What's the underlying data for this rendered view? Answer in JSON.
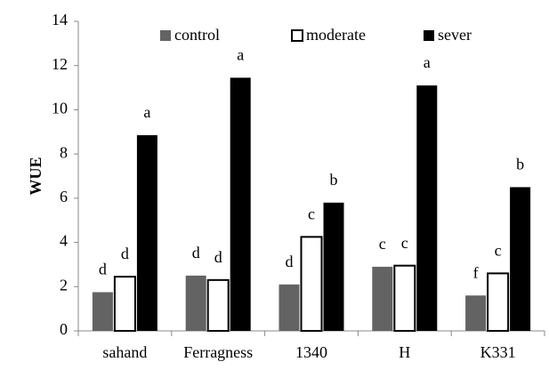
{
  "chart_data": {
    "type": "bar",
    "y_label": "WUE",
    "categories": [
      "sahand",
      "Ferragness",
      "1340",
      "H",
      "K331"
    ],
    "series": [
      {
        "name": "control",
        "color": "#636363",
        "values": [
          1.75,
          2.5,
          2.1,
          2.9,
          1.6
        ],
        "labels": [
          "d",
          "d",
          "d",
          "c",
          "f"
        ]
      },
      {
        "name": "moderate",
        "color": "#ffffff",
        "values": [
          2.45,
          2.3,
          4.25,
          2.95,
          2.6
        ],
        "labels": [
          "d",
          "d",
          "c",
          "c",
          "c"
        ]
      },
      {
        "name": "sever",
        "color": "#000000",
        "values": [
          8.85,
          11.45,
          5.8,
          11.1,
          6.5
        ],
        "labels": [
          "a",
          "a",
          "b",
          "a",
          "b"
        ]
      }
    ],
    "ylim": [
      0,
      14
    ],
    "yticks": [
      0,
      2,
      4,
      6,
      8,
      10,
      12,
      14
    ],
    "grid": false,
    "legend": "top"
  }
}
